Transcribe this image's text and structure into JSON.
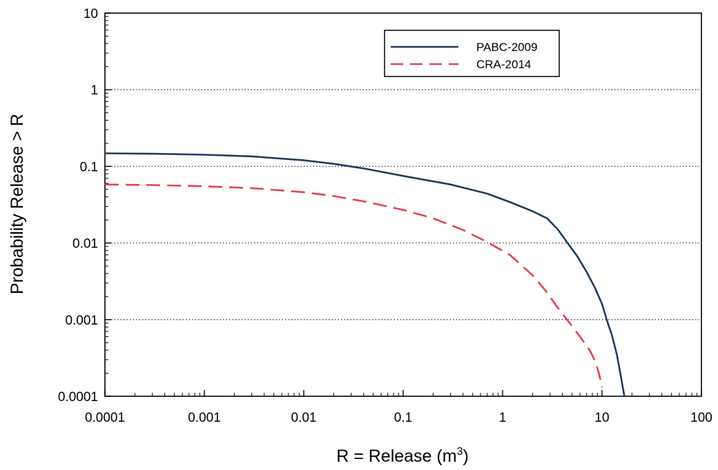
{
  "chart_data": {
    "type": "line",
    "title": "",
    "xlabel": "R = Release (m",
    "xlabel_sup": "3",
    "xlabel_suffix": ")",
    "ylabel": "Probability Release > R",
    "x_scale": "log",
    "y_scale": "log",
    "xlim": [
      0.0001,
      100
    ],
    "ylim": [
      0.0001,
      10
    ],
    "x_ticks": [
      0.0001,
      0.001,
      0.01,
      0.1,
      1,
      10,
      100
    ],
    "x_tick_labels": [
      "0.0001",
      "0.001",
      "0.01",
      "0.1",
      "1",
      "10",
      "100"
    ],
    "y_ticks": [
      0.0001,
      0.001,
      0.01,
      0.1,
      1,
      10
    ],
    "y_tick_labels": [
      "0.0001",
      "0.001",
      "0.01",
      "0.1",
      "1",
      "10"
    ],
    "grid": "horizontal dotted at major y ticks",
    "legend_position": "top-right",
    "series": [
      {
        "name": "PABC-2009",
        "color": "#1f3a5f",
        "style": "solid",
        "x": [
          0.0001,
          0.0003,
          0.001,
          0.003,
          0.01,
          0.02,
          0.04,
          0.1,
          0.3,
          0.7,
          1.2,
          2.0,
          2.8,
          3.6,
          4.5,
          5.6,
          7.0,
          8.5,
          10.0,
          11.2,
          12.6,
          14.1,
          15.5,
          16.8
        ],
        "y": [
          0.148,
          0.146,
          0.142,
          0.135,
          0.12,
          0.108,
          0.094,
          0.075,
          0.058,
          0.044,
          0.034,
          0.026,
          0.021,
          0.015,
          0.01,
          0.0068,
          0.0042,
          0.0026,
          0.0016,
          0.00098,
          0.00062,
          0.00035,
          0.00018,
          0.0001
        ]
      },
      {
        "name": "CRA-2014",
        "color": "#e8404e",
        "style": "dashed",
        "x": [
          0.0001,
          0.0003,
          0.001,
          0.003,
          0.01,
          0.02,
          0.04,
          0.1,
          0.2,
          0.4,
          0.7,
          1.2,
          2.0,
          2.7,
          3.5,
          4.5,
          5.4,
          6.5,
          7.6,
          8.6,
          9.3,
          10.0
        ],
        "y": [
          0.058,
          0.057,
          0.055,
          0.052,
          0.046,
          0.041,
          0.035,
          0.027,
          0.021,
          0.0148,
          0.0103,
          0.0069,
          0.0038,
          0.0024,
          0.0015,
          0.00098,
          0.00072,
          0.00052,
          0.00039,
          0.00028,
          0.0002,
          0.00013
        ]
      }
    ]
  }
}
